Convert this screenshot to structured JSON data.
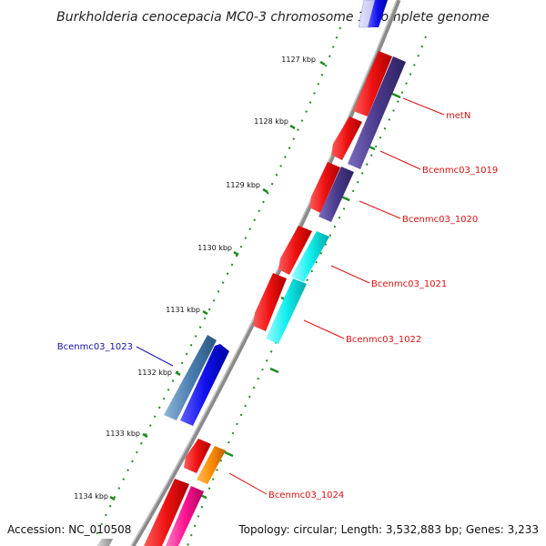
{
  "title": "Burkholderia cenocepacia MC0-3 chromosome 1, complete genome",
  "footer": {
    "accession": "Accession: NC_010508",
    "summary": "Topology: circular; Length: 3,532,883 bp; Genes: 3,233"
  },
  "ticks": [
    "1127 kbp",
    "1128 kbp",
    "1129 kbp",
    "1130 kbp",
    "1131 kbp",
    "1132 kbp",
    "1133 kbp",
    "1134 kbp"
  ],
  "genes": [
    {
      "label": "metN",
      "color": "#dd1111"
    },
    {
      "label": "Bcenmc03_1019",
      "color": "#dd1111"
    },
    {
      "label": "Bcenmc03_1020",
      "color": "#dd1111"
    },
    {
      "label": "Bcenmc03_1021",
      "color": "#dd1111"
    },
    {
      "label": "Bcenmc03_1022",
      "color": "#dd1111"
    },
    {
      "label": "Bcenmc03_1023",
      "color": "#1111aa"
    },
    {
      "label": "Bcenmc03_1024",
      "color": "#dd1111"
    }
  ],
  "colors": {
    "backbone": "#8a8a8a",
    "ticks": "#228b22",
    "cds_forward": "#ee1111",
    "cds_reverse_violet": "#4a3a8c",
    "cds_cyan": "#11eeee",
    "cds_blue": "#1111ee",
    "cds_steel": "#4a7fb0",
    "cds_orange": "#ff8c00",
    "cds_pink": "#ff1493"
  }
}
